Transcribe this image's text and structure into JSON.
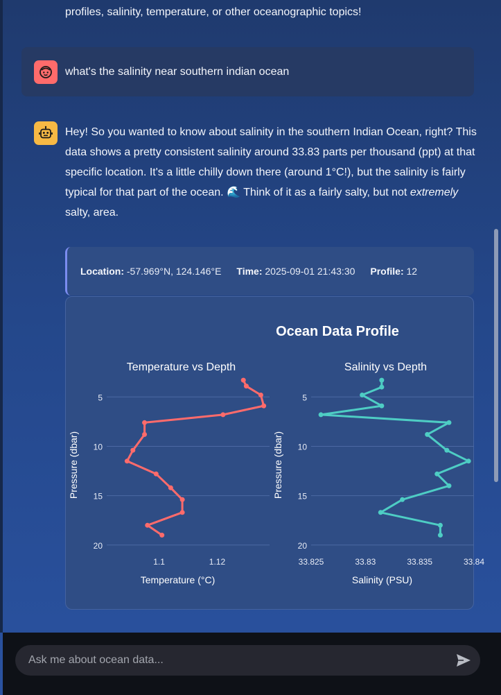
{
  "conversation": {
    "prev_assistant_tail": "profiles, salinity, temperature, or other oceanographic topics!",
    "user_message": "what's the salinity near southern indian ocean",
    "assistant_message": {
      "part1": "Hey! So you wanted to know about salinity in the southern Indian Ocean, right? This data shows a pretty consistent salinity around 33.83 parts per thousand (ppt) at that specific location. It's a little chilly down there (around 1°C!), but the salinity is fairly typical for that part of the ocean. ",
      "emoji": "🌊",
      "part2": " Think of it as a fairly salty, but not ",
      "emphasis": "extremely",
      "part3": " salty, area."
    }
  },
  "profile_meta": {
    "location_label": "Location:",
    "location_value": " -57.969°N, 124.146°E",
    "time_label": "Time:",
    "time_value": " 2025-09-01 21:43:30",
    "profile_label": "Profile:",
    "profile_value": " 12"
  },
  "chart_data": {
    "type": "line",
    "title": "Ocean Data Profile",
    "subplots": [
      {
        "title": "Temperature vs Depth",
        "xlabel": "Temperature (°C)",
        "ylabel": "Pressure (dbar)",
        "xlim": [
          1.082,
          1.138
        ],
        "ylim": [
          21.0,
          2.8
        ],
        "xticks": [
          1.1,
          1.12
        ],
        "xtick_labels": [
          "1.1",
          "1.12"
        ],
        "yticks": [
          5,
          10,
          15,
          20
        ],
        "color": "#ff6b6b",
        "x": [
          1.129,
          1.13,
          1.135,
          1.136,
          1.122,
          1.095,
          1.095,
          1.091,
          1.089,
          1.099,
          1.104,
          1.108,
          1.108,
          1.096,
          1.101
        ],
        "y": [
          3.3,
          3.9,
          4.8,
          5.9,
          6.8,
          7.6,
          8.8,
          10.4,
          11.5,
          12.8,
          14.2,
          15.4,
          16.7,
          18.0,
          19.0
        ]
      },
      {
        "title": "Salinity vs Depth",
        "xlabel": "Salinity (PSU)",
        "ylabel": "Pressure (dbar)",
        "xlim": [
          33.825,
          33.84
        ],
        "ylim": [
          21.0,
          2.8
        ],
        "xticks": [
          33.825,
          33.83,
          33.835,
          33.84
        ],
        "xtick_labels": [
          "33.825",
          "33.83",
          "33.835",
          "33.84"
        ],
        "yticks": [
          5,
          10,
          15,
          20
        ],
        "color": "#4ecdc4",
        "x": [
          33.8315,
          33.8315,
          33.8297,
          33.8315,
          33.8259,
          33.8377,
          33.8357,
          33.8375,
          33.8395,
          33.8366,
          33.8377,
          33.8334,
          33.8314,
          33.8369,
          33.8369
        ],
        "y": [
          3.3,
          4.0,
          4.8,
          5.9,
          6.8,
          7.6,
          8.8,
          10.4,
          11.5,
          12.8,
          14.0,
          15.4,
          16.7,
          18.0,
          19.0
        ]
      }
    ]
  },
  "input": {
    "placeholder": "Ask me about ocean data..."
  },
  "icons": {
    "user_avatar": "user-face-icon",
    "assistant_avatar": "robot-icon",
    "send": "send-arrow-icon"
  },
  "colors": {
    "user_avatar_bg": "#ff6b6b",
    "assistant_avatar_bg": "#f7b944",
    "temperature_line": "#ff6b6b",
    "salinity_line": "#4ecdc4",
    "accent_border": "#7b8cf0"
  }
}
